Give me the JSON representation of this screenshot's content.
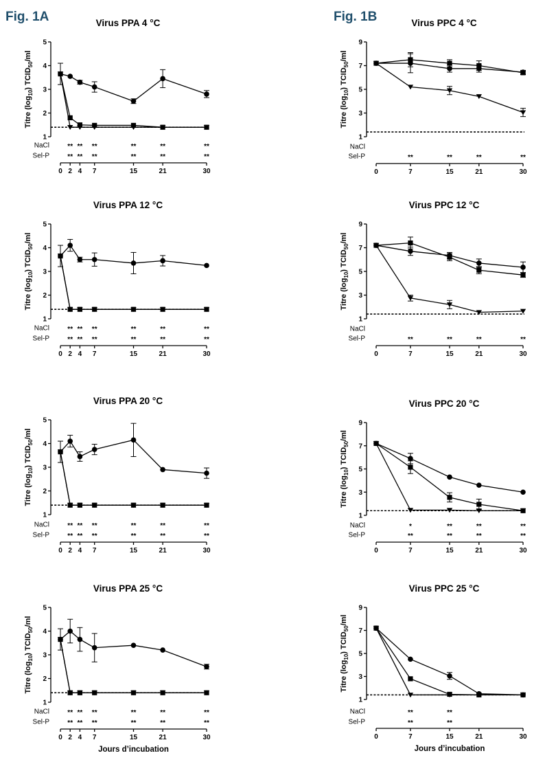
{
  "figure_labels": [
    "Fig. 1A",
    "Fig. 1B"
  ],
  "row_labels": [
    "NaCl",
    "Sel-P"
  ],
  "y_label": "Titre (log10) TCID50/ml",
  "x_label": "Jours d’incubation",
  "colors": {
    "ink": "#000000",
    "fig_label": "#1f4e6b"
  },
  "chart_data": [
    {
      "id": "ppa4",
      "type": "line",
      "title": "Virus PPA  4 °C",
      "x_ticks": [
        0,
        2,
        4,
        7,
        15,
        21,
        30
      ],
      "xlim": [
        0,
        30
      ],
      "ylim": [
        1,
        5
      ],
      "y_ticks": [
        1,
        2,
        3,
        4,
        5
      ],
      "detection_limit": 1.4,
      "series": [
        {
          "marker": "circle",
          "x": [
            0,
            2,
            4,
            7,
            15,
            21,
            30
          ],
          "y": [
            3.65,
            3.55,
            3.3,
            3.1,
            2.5,
            3.45,
            2.8
          ],
          "err": [
            0.45,
            0,
            0.08,
            0.22,
            0.1,
            0.38,
            0.15
          ]
        },
        {
          "marker": "square",
          "x": [
            0,
            2,
            4,
            7,
            15,
            21,
            30
          ],
          "y": [
            3.65,
            1.8,
            1.5,
            1.48,
            1.48,
            1.4,
            1.4
          ],
          "err": [
            0,
            0,
            0,
            0,
            0,
            0,
            0
          ]
        },
        {
          "marker": "triangle",
          "x": [
            0,
            2,
            4,
            7,
            15,
            21,
            30
          ],
          "y": [
            3.65,
            1.4,
            1.4,
            1.4,
            1.4,
            1.4,
            1.4
          ],
          "err": [
            0,
            0,
            0,
            0,
            0,
            0,
            0
          ]
        }
      ],
      "significance": {
        "NaCl": [
          "",
          "**",
          "**",
          "**",
          "**",
          "**",
          "**"
        ],
        "Sel-P": [
          "",
          "**",
          "**",
          "**",
          "**",
          "**",
          "**"
        ]
      }
    },
    {
      "id": "ppa12",
      "type": "line",
      "title": "Virus PPA  12 °C",
      "x_ticks": [
        0,
        2,
        4,
        7,
        15,
        21,
        30
      ],
      "xlim": [
        0,
        30
      ],
      "ylim": [
        1,
        5
      ],
      "y_ticks": [
        1,
        2,
        3,
        4,
        5
      ],
      "detection_limit": 1.4,
      "series": [
        {
          "marker": "circle",
          "x": [
            0,
            2,
            4,
            7,
            15,
            21,
            30
          ],
          "y": [
            3.65,
            4.1,
            3.5,
            3.5,
            3.35,
            3.45,
            3.25
          ],
          "err": [
            0.45,
            0.25,
            0.1,
            0.28,
            0.45,
            0.22,
            0
          ]
        },
        {
          "marker": "square",
          "x": [
            0,
            2,
            4,
            7,
            15,
            21,
            30
          ],
          "y": [
            3.65,
            1.4,
            1.4,
            1.4,
            1.4,
            1.4,
            1.4
          ],
          "err": [
            0,
            0,
            0,
            0,
            0,
            0,
            0
          ]
        },
        {
          "marker": "triangle",
          "x": [
            0,
            2,
            4,
            7,
            15,
            21,
            30
          ],
          "y": [
            3.65,
            1.4,
            1.4,
            1.4,
            1.4,
            1.4,
            1.4
          ],
          "err": [
            0,
            0,
            0,
            0,
            0,
            0,
            0
          ]
        }
      ],
      "significance": {
        "NaCl": [
          "",
          "**",
          "**",
          "**",
          "**",
          "**",
          "**"
        ],
        "Sel-P": [
          "",
          "**",
          "**",
          "**",
          "**",
          "**",
          "**"
        ]
      }
    },
    {
      "id": "ppa20",
      "type": "line",
      "title": "Virus PPA  20 °C",
      "x_ticks": [
        0,
        2,
        4,
        7,
        15,
        21,
        30
      ],
      "xlim": [
        0,
        30
      ],
      "ylim": [
        1,
        5
      ],
      "y_ticks": [
        1,
        2,
        3,
        4,
        5
      ],
      "detection_limit": 1.4,
      "series": [
        {
          "marker": "circle",
          "x": [
            0,
            2,
            4,
            7,
            15,
            21,
            30
          ],
          "y": [
            3.65,
            4.1,
            3.45,
            3.75,
            4.15,
            2.9,
            2.75
          ],
          "err": [
            0.45,
            0.25,
            0.2,
            0.22,
            0.7,
            0,
            0.22
          ]
        },
        {
          "marker": "square",
          "x": [
            0,
            2,
            4,
            7,
            15,
            21,
            30
          ],
          "y": [
            3.65,
            1.4,
            1.4,
            1.4,
            1.4,
            1.4,
            1.4
          ],
          "err": [
            0,
            0,
            0,
            0,
            0,
            0,
            0
          ]
        },
        {
          "marker": "triangle",
          "x": [
            0,
            2,
            4,
            7,
            15,
            21,
            30
          ],
          "y": [
            3.65,
            1.4,
            1.4,
            1.4,
            1.4,
            1.4,
            1.4
          ],
          "err": [
            0,
            0,
            0,
            0,
            0,
            0,
            0
          ]
        }
      ],
      "significance": {
        "NaCl": [
          "",
          "**",
          "**",
          "**",
          "**",
          "**",
          "**"
        ],
        "Sel-P": [
          "",
          "**",
          "**",
          "**",
          "**",
          "**",
          "**"
        ]
      }
    },
    {
      "id": "ppa25",
      "type": "line",
      "title": "Virus PPA  25 °C",
      "x_ticks": [
        0,
        2,
        4,
        7,
        15,
        21,
        30
      ],
      "xlim": [
        0,
        30
      ],
      "ylim": [
        1,
        5
      ],
      "y_ticks": [
        1,
        2,
        3,
        4,
        5
      ],
      "detection_limit": 1.4,
      "series": [
        {
          "marker": "circle",
          "x": [
            0,
            2,
            4,
            7,
            15,
            21,
            30
          ],
          "y": [
            3.65,
            4.0,
            3.65,
            3.3,
            3.4,
            3.2,
            2.5
          ],
          "err": [
            0.45,
            0.5,
            0.5,
            0.6,
            0,
            0,
            0.1
          ]
        },
        {
          "marker": "square",
          "x": [
            0,
            2,
            4,
            7,
            15,
            21,
            30
          ],
          "y": [
            3.65,
            1.4,
            1.4,
            1.4,
            1.4,
            1.4,
            1.4
          ],
          "err": [
            0,
            0,
            0,
            0,
            0,
            0,
            0
          ]
        },
        {
          "marker": "triangle",
          "x": [
            0,
            2,
            4,
            7,
            15,
            21,
            30
          ],
          "y": [
            3.65,
            1.4,
            1.4,
            1.4,
            1.4,
            1.4,
            1.4
          ],
          "err": [
            0,
            0,
            0,
            0,
            0,
            0,
            0
          ]
        }
      ],
      "significance": {
        "NaCl": [
          "",
          "**",
          "**",
          "**",
          "**",
          "**",
          "**"
        ],
        "Sel-P": [
          "",
          "**",
          "**",
          "**",
          "**",
          "**",
          "**"
        ]
      }
    },
    {
      "id": "ppc4",
      "type": "line",
      "title": "Virus PPC  4 °C",
      "x_ticks": [
        0,
        7,
        15,
        21,
        30
      ],
      "xlim": [
        0,
        30
      ],
      "ylim": [
        1,
        9
      ],
      "y_ticks": [
        1,
        3,
        5,
        7,
        9
      ],
      "detection_limit": 1.4,
      "series": [
        {
          "marker": "circle",
          "x": [
            0,
            7,
            15,
            21,
            30
          ],
          "y": [
            7.2,
            7.2,
            6.75,
            6.75,
            6.45
          ],
          "err": [
            0,
            0.8,
            0.3,
            0.3,
            0.15
          ]
        },
        {
          "marker": "square",
          "x": [
            0,
            7,
            15,
            21,
            30
          ],
          "y": [
            7.2,
            7.5,
            7.2,
            7.0,
            6.4
          ],
          "err": [
            0,
            0.6,
            0.3,
            0.4,
            0.15
          ]
        },
        {
          "marker": "triangle",
          "x": [
            0,
            7,
            15,
            21,
            30
          ],
          "y": [
            7.2,
            5.2,
            4.9,
            4.4,
            3.05
          ],
          "err": [
            0,
            0,
            0.35,
            0,
            0.35
          ]
        }
      ],
      "significance": {
        "NaCl": [
          "",
          "",
          "",
          "",
          ""
        ],
        "Sel-P": [
          "",
          "**",
          "**",
          "**",
          "**"
        ]
      }
    },
    {
      "id": "ppc12",
      "type": "line",
      "title": "Virus PPC  12 °C",
      "x_ticks": [
        0,
        7,
        15,
        21,
        30
      ],
      "xlim": [
        0,
        30
      ],
      "ylim": [
        1,
        9
      ],
      "y_ticks": [
        1,
        3,
        5,
        7,
        9
      ],
      "detection_limit": 1.4,
      "series": [
        {
          "marker": "circle",
          "x": [
            0,
            7,
            15,
            21,
            30
          ],
          "y": [
            7.2,
            6.7,
            6.35,
            5.7,
            5.35
          ],
          "err": [
            0,
            0.35,
            0.25,
            0.35,
            0.45
          ]
        },
        {
          "marker": "square",
          "x": [
            0,
            7,
            15,
            21,
            30
          ],
          "y": [
            7.2,
            7.4,
            6.2,
            5.1,
            4.7
          ],
          "err": [
            0,
            0.5,
            0.3,
            0.3,
            0.2
          ]
        },
        {
          "marker": "triangle",
          "x": [
            0,
            7,
            15,
            21,
            30
          ],
          "y": [
            7.2,
            2.75,
            2.2,
            1.55,
            1.65
          ],
          "err": [
            0,
            0.25,
            0.35,
            0,
            0
          ]
        }
      ],
      "significance": {
        "NaCl": [
          "",
          "",
          "",
          "",
          ""
        ],
        "Sel-P": [
          "",
          "**",
          "**",
          "**",
          "**"
        ]
      }
    },
    {
      "id": "ppc20",
      "type": "line",
      "title": "Virus PPC  20 °C",
      "x_ticks": [
        0,
        7,
        15,
        21,
        30
      ],
      "xlim": [
        0,
        30
      ],
      "ylim": [
        1,
        9
      ],
      "y_ticks": [
        1,
        3,
        5,
        7,
        9
      ],
      "detection_limit": 1.4,
      "series": [
        {
          "marker": "circle",
          "x": [
            0,
            7,
            15,
            21,
            30
          ],
          "y": [
            7.2,
            5.9,
            4.3,
            3.6,
            3.0
          ],
          "err": [
            0,
            0.45,
            0,
            0,
            0
          ]
        },
        {
          "marker": "square",
          "x": [
            0,
            7,
            15,
            21,
            30
          ],
          "y": [
            7.2,
            5.15,
            2.55,
            1.95,
            1.4
          ],
          "err": [
            0,
            0.55,
            0.4,
            0.45,
            0
          ]
        },
        {
          "marker": "triangle",
          "x": [
            0,
            7,
            15,
            21,
            30
          ],
          "y": [
            7.2,
            1.45,
            1.45,
            1.4,
            1.4
          ],
          "err": [
            0,
            0,
            0,
            0,
            0
          ]
        }
      ],
      "significance": {
        "NaCl": [
          "",
          "*",
          "**",
          "**",
          "**"
        ],
        "Sel-P": [
          "",
          "**",
          "**",
          "**",
          "**"
        ]
      }
    },
    {
      "id": "ppc25",
      "type": "line",
      "title": "Virus PPC  25 °C",
      "x_ticks": [
        0,
        7,
        15,
        21,
        30
      ],
      "xlim": [
        0,
        30
      ],
      "ylim": [
        1,
        9
      ],
      "y_ticks": [
        1,
        3,
        5,
        7,
        9
      ],
      "detection_limit": 1.4,
      "series": [
        {
          "marker": "circle",
          "x": [
            0,
            7,
            15,
            21,
            30
          ],
          "y": [
            7.2,
            4.5,
            3.05,
            1.5,
            1.4
          ],
          "err": [
            0,
            0,
            0.3,
            0,
            0
          ]
        },
        {
          "marker": "square",
          "x": [
            0,
            7,
            15,
            21,
            30
          ],
          "y": [
            7.2,
            2.8,
            1.45,
            1.4,
            1.4
          ],
          "err": [
            0,
            0,
            0,
            0,
            0
          ]
        },
        {
          "marker": "triangle",
          "x": [
            0,
            7,
            15,
            21,
            30
          ],
          "y": [
            7.2,
            1.4,
            1.4,
            1.4,
            1.4
          ],
          "err": [
            0,
            0,
            0,
            0,
            0
          ]
        }
      ],
      "significance": {
        "NaCl": [
          "",
          "**",
          "**",
          "",
          ""
        ],
        "Sel-P": [
          "",
          "**",
          "**",
          "",
          ""
        ]
      }
    }
  ]
}
